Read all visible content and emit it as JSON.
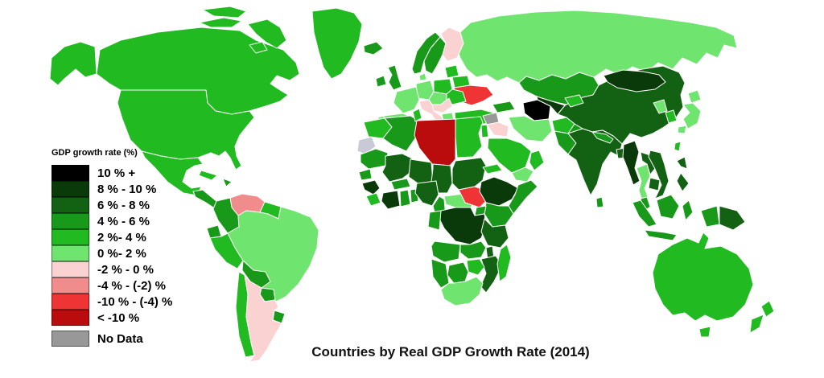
{
  "title": "Countries by Real GDP Growth Rate (2014)",
  "legend": {
    "title": "GDP growth rate (%)",
    "entries": [
      {
        "key": "gt10",
        "label": "10 % +",
        "color": "#000000"
      },
      {
        "key": "g8_10",
        "label": "8 % - 10 %",
        "color": "#0a3a0a"
      },
      {
        "key": "g6_8",
        "label": "6 % - 8 %",
        "color": "#136113"
      },
      {
        "key": "g4_6",
        "label": "4 % - 6 %",
        "color": "#199919"
      },
      {
        "key": "g2_4",
        "label": "2 %- 4 %",
        "color": "#21ba21"
      },
      {
        "key": "g0_2",
        "label": "0 %- 2 %",
        "color": "#6fe46f"
      },
      {
        "key": "n2_0",
        "label": "-2 % - 0 %",
        "color": "#fbd2d2"
      },
      {
        "key": "n4_2",
        "label": "-4 % - (-2) %",
        "color": "#f18c8c"
      },
      {
        "key": "n10_4",
        "label": "-10 % - (-4) %",
        "color": "#ee3434"
      },
      {
        "key": "lt10",
        "label": "< -10 %",
        "color": "#ba0c0c"
      },
      {
        "key": "nodata",
        "label": "No Data",
        "color": "#989898",
        "gap_before": true
      }
    ]
  },
  "map": {
    "stroke_color": "#ffffff",
    "regions": [
      {
        "name": "russia",
        "category": "g0_2"
      },
      {
        "name": "canada",
        "category": "g2_4"
      },
      {
        "name": "arctic1",
        "category": "g2_4"
      },
      {
        "name": "arctic2",
        "category": "g2_4"
      },
      {
        "name": "arctic3",
        "category": "g2_4"
      },
      {
        "name": "arctic4",
        "category": "g2_4"
      },
      {
        "name": "greenland",
        "category": "g2_4"
      },
      {
        "name": "alaska",
        "category": "g2_4"
      },
      {
        "name": "usa",
        "category": "g2_4"
      },
      {
        "name": "mexico",
        "category": "g2_4"
      },
      {
        "name": "centralamerica",
        "category": "g4_6"
      },
      {
        "name": "cuba",
        "category": "g2_4"
      },
      {
        "name": "hispaniola",
        "category": "g4_6"
      },
      {
        "name": "venezuela",
        "category": "n4_2"
      },
      {
        "name": "colombia",
        "category": "g4_6"
      },
      {
        "name": "guianas",
        "category": "g2_4"
      },
      {
        "name": "ecuador",
        "category": "g4_6"
      },
      {
        "name": "peru",
        "category": "g2_4"
      },
      {
        "name": "brazil",
        "category": "g0_2"
      },
      {
        "name": "bolivia",
        "category": "g4_6"
      },
      {
        "name": "paraguay",
        "category": "g4_6"
      },
      {
        "name": "uruguay",
        "category": "g4_6"
      },
      {
        "name": "chile",
        "category": "g2_4"
      },
      {
        "name": "argentina",
        "category": "n2_0"
      },
      {
        "name": "iceland",
        "category": "g4_6"
      },
      {
        "name": "ireland",
        "category": "g4_6"
      },
      {
        "name": "uk",
        "category": "g4_6"
      },
      {
        "name": "norway",
        "category": "g4_6"
      },
      {
        "name": "sweden",
        "category": "g4_6"
      },
      {
        "name": "finland",
        "category": "n2_0"
      },
      {
        "name": "baltics",
        "category": "g2_4"
      },
      {
        "name": "denmark",
        "category": "g0_2"
      },
      {
        "name": "germany",
        "category": "g0_2"
      },
      {
        "name": "centraleurope",
        "category": "g0_2"
      },
      {
        "name": "poland",
        "category": "g2_4"
      },
      {
        "name": "belarus",
        "category": "g2_4"
      },
      {
        "name": "ukraine",
        "category": "n10_4"
      },
      {
        "name": "romania",
        "category": "g2_4"
      },
      {
        "name": "balkans",
        "category": "n2_0"
      },
      {
        "name": "greece",
        "category": "g0_2"
      },
      {
        "name": "italy",
        "category": "n2_0"
      },
      {
        "name": "france",
        "category": "g0_2"
      },
      {
        "name": "spain",
        "category": "g0_2"
      },
      {
        "name": "portugal",
        "category": "g0_2"
      },
      {
        "name": "turkey",
        "category": "g2_4"
      },
      {
        "name": "morocco",
        "category": "g2_4"
      },
      {
        "name": "wsahara",
        "category": "nodata",
        "fill": "#c9c9d8"
      },
      {
        "name": "algeria",
        "category": "g4_6"
      },
      {
        "name": "tunisia",
        "category": "g2_4"
      },
      {
        "name": "libya",
        "category": "lt10"
      },
      {
        "name": "egypt",
        "category": "g2_4"
      },
      {
        "name": "mauritania",
        "category": "g4_6"
      },
      {
        "name": "mali",
        "category": "g6_8"
      },
      {
        "name": "niger",
        "category": "g6_8"
      },
      {
        "name": "chad",
        "category": "g6_8"
      },
      {
        "name": "sudan",
        "category": "g6_8"
      },
      {
        "name": "eritrea",
        "category": "g2_4"
      },
      {
        "name": "senegal",
        "category": "g4_6"
      },
      {
        "name": "guinea",
        "category": "g8_10"
      },
      {
        "name": "sierraleone",
        "category": "g2_4"
      },
      {
        "name": "ivorycoast",
        "category": "g8_10"
      },
      {
        "name": "ghana",
        "category": "g4_6"
      },
      {
        "name": "togobenin",
        "category": "g4_6"
      },
      {
        "name": "burkina",
        "category": "g4_6"
      },
      {
        "name": "nigeria",
        "category": "g6_8"
      },
      {
        "name": "cameroon",
        "category": "g4_6"
      },
      {
        "name": "car",
        "category": "g0_2"
      },
      {
        "name": "southsudan",
        "category": "n10_4"
      },
      {
        "name": "ethiopia",
        "category": "g8_10"
      },
      {
        "name": "somalia",
        "category": "g4_6"
      },
      {
        "name": "kenya",
        "category": "g4_6"
      },
      {
        "name": "uganda",
        "category": "g4_6"
      },
      {
        "name": "drc",
        "category": "g8_10"
      },
      {
        "name": "congogabon",
        "category": "g4_6"
      },
      {
        "name": "tanzania",
        "category": "g6_8"
      },
      {
        "name": "angola",
        "category": "g4_6"
      },
      {
        "name": "zambia",
        "category": "g4_6"
      },
      {
        "name": "malawi",
        "category": "g6_8"
      },
      {
        "name": "mozambique",
        "category": "g6_8"
      },
      {
        "name": "zimbabwe",
        "category": "g2_4"
      },
      {
        "name": "namibia",
        "category": "g4_6"
      },
      {
        "name": "botswana",
        "category": "g4_6"
      },
      {
        "name": "southafrica",
        "category": "g0_2"
      },
      {
        "name": "madagascar",
        "category": "g2_4"
      },
      {
        "name": "syria",
        "category": "nodata"
      },
      {
        "name": "iraq",
        "category": "n2_0"
      },
      {
        "name": "jordanisrael",
        "category": "g2_4"
      },
      {
        "name": "saudi",
        "category": "g2_4"
      },
      {
        "name": "yemen",
        "category": "g0_2"
      },
      {
        "name": "oman",
        "category": "g2_4"
      },
      {
        "name": "caucasus",
        "category": "g4_6"
      },
      {
        "name": "kazakhstan",
        "category": "g4_6"
      },
      {
        "name": "china",
        "category": "g6_8"
      },
      {
        "name": "mongolia",
        "category": "g8_10"
      },
      {
        "name": "turkmenistan",
        "category": "gt10"
      },
      {
        "name": "uzbekistan",
        "category": "g8_10"
      },
      {
        "name": "kyrgyztajik",
        "category": "g2_4"
      },
      {
        "name": "iran",
        "category": "g0_2"
      },
      {
        "name": "afghanistan",
        "category": "g2_4"
      },
      {
        "name": "pakistan",
        "category": "g4_6"
      },
      {
        "name": "india",
        "category": "g6_8"
      },
      {
        "name": "nepal",
        "category": "g4_6"
      },
      {
        "name": "bangladesh",
        "category": "g6_8"
      },
      {
        "name": "srilanka",
        "category": "g4_6"
      },
      {
        "name": "myanmar",
        "category": "g8_10"
      },
      {
        "name": "laos",
        "category": "g6_8"
      },
      {
        "name": "thailand",
        "category": "g0_2"
      },
      {
        "name": "vietnam",
        "category": "g6_8"
      },
      {
        "name": "cambodia",
        "category": "g6_8"
      },
      {
        "name": "malaysia",
        "category": "g4_6"
      },
      {
        "name": "nkorea",
        "category": "g0_2"
      },
      {
        "name": "skorea",
        "category": "g2_4"
      },
      {
        "name": "japan_hokkaido",
        "category": "g0_2"
      },
      {
        "name": "japan_honshu",
        "category": "g0_2"
      },
      {
        "name": "japan_kyushu",
        "category": "g0_2"
      },
      {
        "name": "taiwan",
        "category": "g2_4"
      },
      {
        "name": "philippines1",
        "category": "g6_8"
      },
      {
        "name": "philippines2",
        "category": "g6_8"
      },
      {
        "name": "sumatra",
        "category": "g4_6"
      },
      {
        "name": "java",
        "category": "g4_6"
      },
      {
        "name": "borneo",
        "category": "g4_6"
      },
      {
        "name": "sulawesi",
        "category": "g4_6"
      },
      {
        "name": "wpapua",
        "category": "g4_6"
      },
      {
        "name": "png",
        "category": "g6_8"
      },
      {
        "name": "australia",
        "category": "g2_4"
      },
      {
        "name": "tasmania",
        "category": "g2_4"
      },
      {
        "name": "nz_north",
        "category": "g2_4"
      },
      {
        "name": "nz_south",
        "category": "g2_4"
      }
    ]
  }
}
